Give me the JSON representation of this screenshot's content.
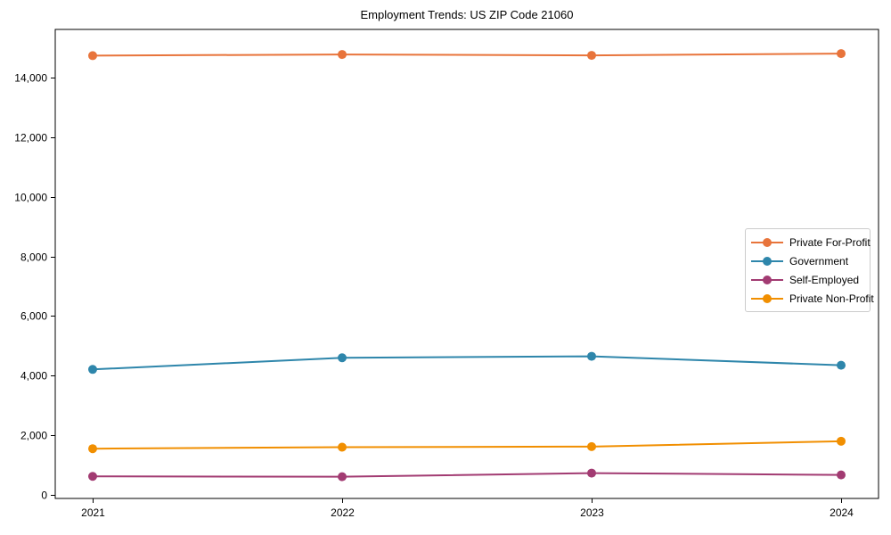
{
  "chart_data": {
    "type": "line",
    "title": "Employment Trends: US ZIP Code 21060",
    "categories": [
      "2021",
      "2022",
      "2023",
      "2024"
    ],
    "x": [
      2021,
      2022,
      2023,
      2024
    ],
    "series": [
      {
        "name": "Private For-Profit",
        "color": "#E8743B",
        "values": [
          14740,
          14780,
          14750,
          14810
        ]
      },
      {
        "name": "Government",
        "color": "#2E86AB",
        "values": [
          4210,
          4600,
          4650,
          4350
        ]
      },
      {
        "name": "Self-Employed",
        "color": "#A23B72",
        "values": [
          620,
          610,
          730,
          670
        ]
      },
      {
        "name": "Private Non-Profit",
        "color": "#F18F01",
        "values": [
          1550,
          1600,
          1620,
          1800
        ]
      }
    ],
    "xlabel": "",
    "ylabel": "",
    "xlim": [
      2020.85,
      2024.15
    ],
    "ylim": [
      -120,
      15620
    ],
    "yticks": [
      0,
      2000,
      4000,
      6000,
      8000,
      10000,
      12000,
      14000
    ],
    "ytick_labels": [
      "0",
      "2,000",
      "4,000",
      "6,000",
      "8,000",
      "10,000",
      "12,000",
      "14,000"
    ],
    "grid": false,
    "legend_position": "center right",
    "marker": "circle",
    "axis_color": "#000000"
  }
}
